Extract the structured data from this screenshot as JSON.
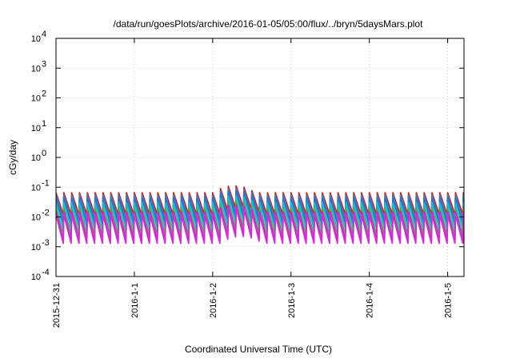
{
  "chart_data": {
    "type": "line",
    "title": "/data/run/goesPlots/archive/2016-01-05/05:00/flux/../bryn/5daysMars.plot",
    "xlabel": "Coordinated Universal Time (UTC)",
    "ylabel": "cGy/day",
    "yscale": "log",
    "ylim": [
      0.0001,
      10000
    ],
    "yticks": [
      {
        "value": 0.0001,
        "base": "10",
        "exp": "-4"
      },
      {
        "value": 0.001,
        "base": "10",
        "exp": "-3"
      },
      {
        "value": 0.01,
        "base": "10",
        "exp": "-2"
      },
      {
        "value": 0.1,
        "base": "10",
        "exp": "-1"
      },
      {
        "value": 1,
        "base": "10",
        "exp": "0"
      },
      {
        "value": 10,
        "base": "10",
        "exp": "1"
      },
      {
        "value": 100,
        "base": "10",
        "exp": "2"
      },
      {
        "value": 1000,
        "base": "10",
        "exp": "3"
      },
      {
        "value": 10000,
        "base": "10",
        "exp": "4"
      }
    ],
    "xlim": [
      "2015-12-31",
      "2016-01-05 05:00"
    ],
    "xticks": [
      "2015-12-31",
      "2016-1-1",
      "2016-1-2",
      "2016-1-3",
      "2016-1-4",
      "2016-1-5"
    ],
    "grid": true,
    "legend": "none",
    "oscillation_period_hours": 2.4,
    "series": [
      {
        "color": "#e41a1c",
        "peak": 0.065,
        "trough": 0.012
      },
      {
        "color": "#377eb8",
        "peak": 0.055,
        "trough": 0.008
      },
      {
        "color": "#1f78d4",
        "peak": 0.042,
        "trough": 0.006
      },
      {
        "color": "#17becf",
        "peak": 0.03,
        "trough": 0.004
      },
      {
        "color": "#4daf4a",
        "peak": 0.02,
        "trough": 0.0025
      },
      {
        "color": "#ff00ff",
        "peak": 0.015,
        "trough": 0.0016
      },
      {
        "color": "#cc33cc",
        "peak": 0.012,
        "trough": 0.0013
      }
    ],
    "event_bump": {
      "start": "2016-01-02 00:00",
      "end": "2016-01-02 21:00",
      "peak_factor": 1.7
    }
  }
}
